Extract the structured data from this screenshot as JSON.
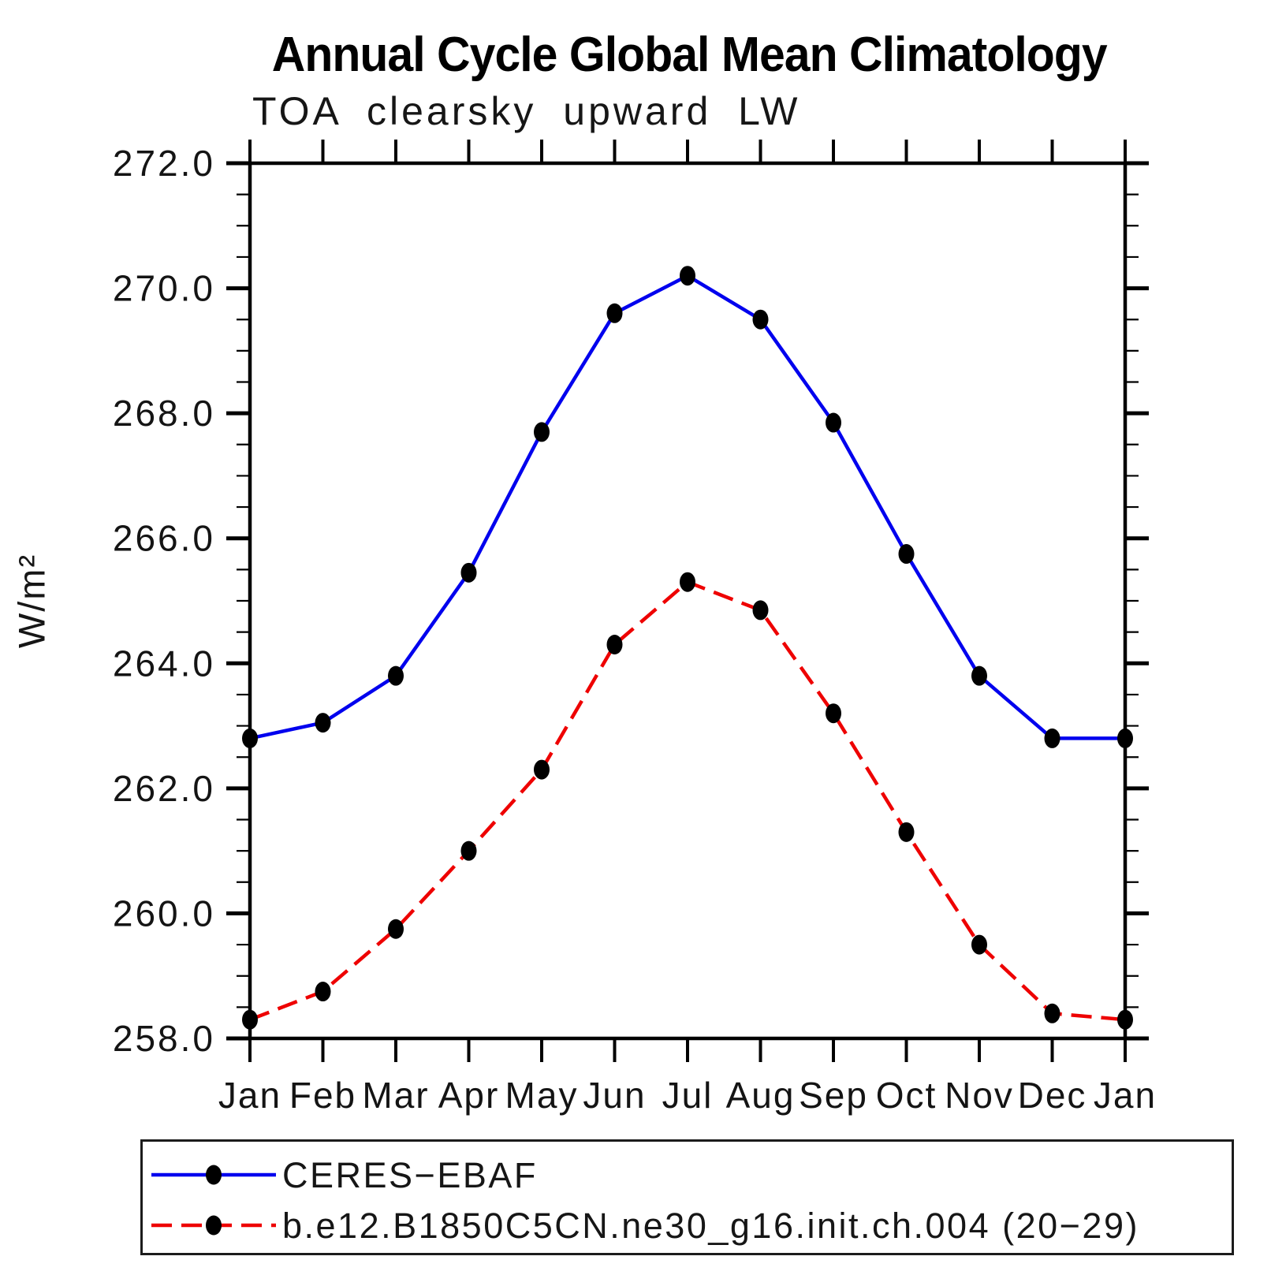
{
  "chart_data": {
    "type": "line",
    "title": "Annual Cycle Global Mean Climatology",
    "subtitle": "TOA clearsky upward LW",
    "ylabel": "W/m²",
    "xlabel": "",
    "grid": false,
    "legend_position": "bottom",
    "ylim": [
      258.0,
      272.0
    ],
    "y_major_step": 2.0,
    "y_minor_step": 0.5,
    "y_tick_labels": [
      "258.0",
      "260.0",
      "262.0",
      "264.0",
      "266.0",
      "268.0",
      "270.0",
      "272.0"
    ],
    "categories": [
      "Jan",
      "Feb",
      "Mar",
      "Apr",
      "May",
      "Jun",
      "Jul",
      "Aug",
      "Sep",
      "Oct",
      "Nov",
      "Dec",
      "Jan"
    ],
    "series": [
      {
        "name": "CERES−EBAF",
        "color": "#0000ee",
        "style": "solid",
        "dasharray": "none",
        "marker": "filled-circle",
        "marker_color": "#000000",
        "values": [
          262.8,
          263.05,
          263.8,
          265.45,
          267.7,
          269.6,
          270.2,
          269.5,
          267.85,
          265.75,
          263.8,
          262.8,
          262.8
        ]
      },
      {
        "name": "b.e12.B1850C5CN.ne30_g16.init.ch.004 (20−29)",
        "color": "#ee0000",
        "style": "dashed",
        "dasharray": "26 12",
        "marker": "filled-circle",
        "marker_color": "#000000",
        "values": [
          258.3,
          258.75,
          259.75,
          261.0,
          262.3,
          264.3,
          265.3,
          264.85,
          263.2,
          261.3,
          259.5,
          258.4,
          258.3
        ]
      }
    ]
  }
}
